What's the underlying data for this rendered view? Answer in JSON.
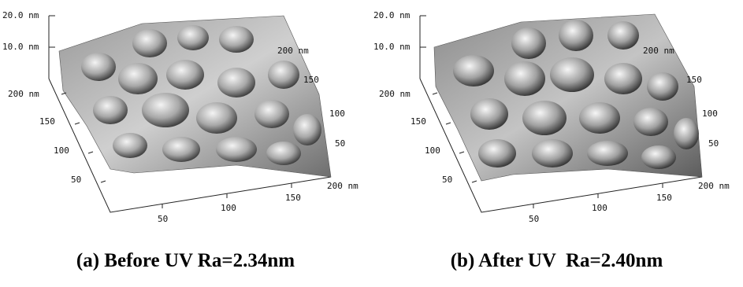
{
  "panels": [
    {
      "caption": "(a) Before UV Ra=2.34nm",
      "z_labels": [
        "20.0 nm",
        "10.0 nm"
      ],
      "left_axis_labels": [
        "200 nm",
        "150",
        "100",
        "50"
      ],
      "bottom_axis_labels": [
        "50",
        "100",
        "150",
        "200 nm"
      ],
      "right_axis_labels": [
        "200 nm",
        "150",
        "100",
        "50"
      ]
    },
    {
      "caption": "(b) After UV  Ra=2.40nm",
      "z_labels": [
        "20.0 nm",
        "10.0 nm"
      ],
      "left_axis_labels": [
        "200 nm",
        "150",
        "100",
        "50"
      ],
      "bottom_axis_labels": [
        "50",
        "100",
        "150",
        "200 nm"
      ],
      "right_axis_labels": [
        "200 nm",
        "150",
        "100",
        "50"
      ]
    }
  ]
}
